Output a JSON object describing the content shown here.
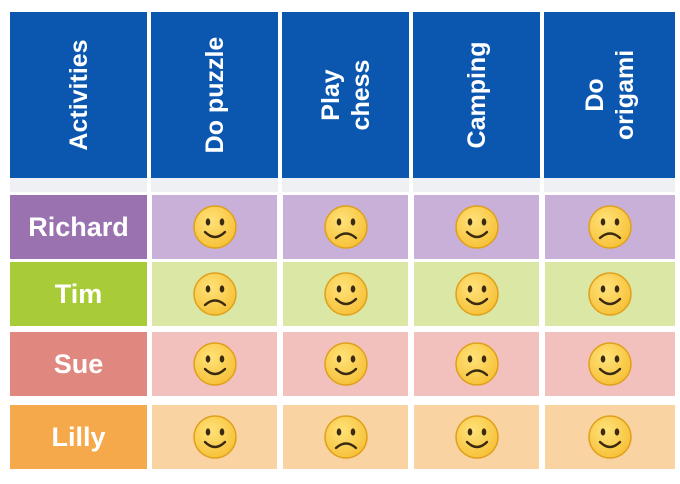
{
  "header": {
    "corner_label": "Activities",
    "activities": [
      {
        "lines": [
          "Do puzzle"
        ]
      },
      {
        "lines": [
          "Play",
          "chess"
        ]
      },
      {
        "lines": [
          "Camping"
        ]
      },
      {
        "lines": [
          "Do",
          "origami"
        ]
      }
    ]
  },
  "rows": [
    {
      "name": "Richard",
      "label_color": "#9b72b0",
      "cell_color": "#c9b0d9",
      "moods": [
        "happy",
        "sad",
        "happy",
        "sad"
      ]
    },
    {
      "name": "Tim",
      "label_color": "#a8cc38",
      "cell_color": "#dbe7a4",
      "moods": [
        "sad",
        "happy",
        "happy",
        "happy"
      ]
    },
    {
      "name": "Sue",
      "label_color": "#e08780",
      "cell_color": "#f3c1bd",
      "moods": [
        "happy",
        "happy",
        "sad",
        "happy"
      ]
    },
    {
      "name": "Lilly",
      "label_color": "#f5a94a",
      "cell_color": "#f9d3a2",
      "moods": [
        "happy",
        "sad",
        "happy",
        "happy"
      ]
    }
  ],
  "colors": {
    "header_bg": "#0b57b0",
    "header_text": "#ffffff",
    "face_fill": "#f7c23a",
    "face_outline": "#dfa01c",
    "face_features": "#3a2a10"
  },
  "icons": {
    "happy": "smiling-face-icon",
    "sad": "frowning-face-icon"
  }
}
